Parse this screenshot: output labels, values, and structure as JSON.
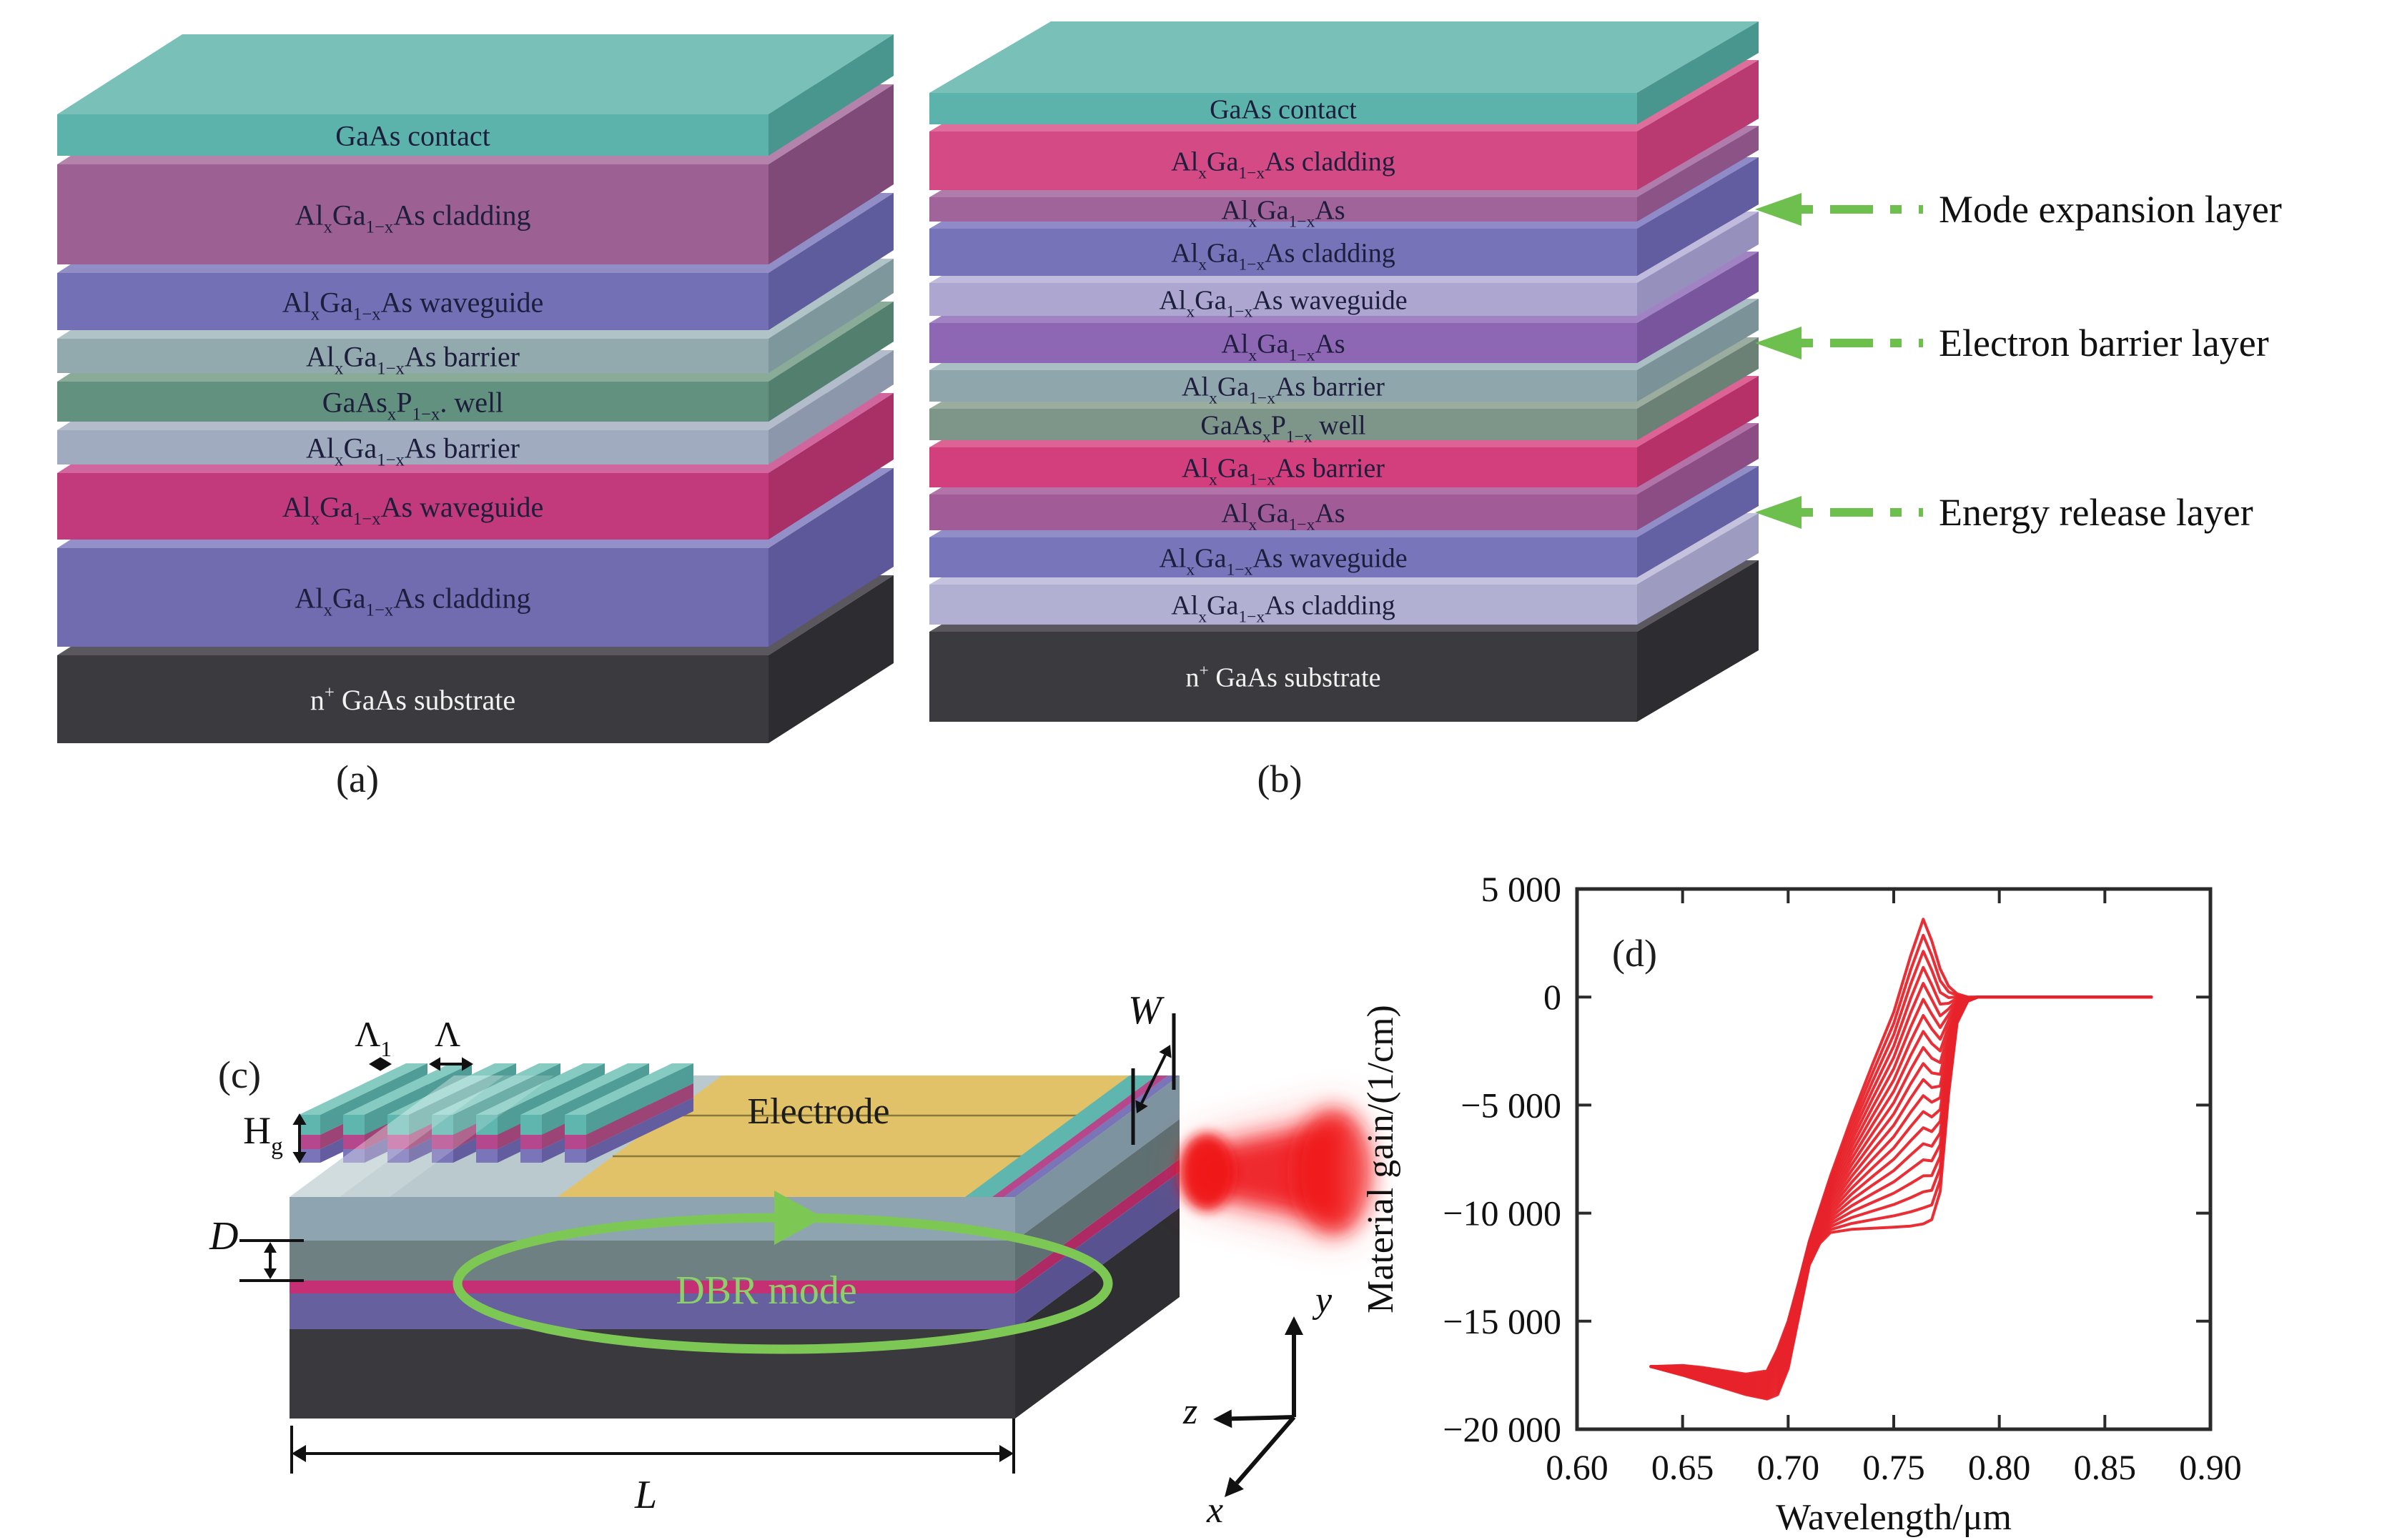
{
  "colors": {
    "annotation_green": "#6dbf4e",
    "dbr_green": "#8bd06a",
    "beam_red": "#ee1b22",
    "curve_red": "#e8232a",
    "electrode_yellow": "#e2c268",
    "text_dark": "#1d1d3c",
    "substrate_text": "#f2f2f2",
    "axis_black": "#2a2a2a"
  },
  "panel_a": {
    "caption": "(a)",
    "layers": [
      {
        "label": [
          {
            "t": "GaAs contact"
          }
        ],
        "h": 58,
        "top": "#79c0b9",
        "front": "#5bb3ac",
        "side": "#49968f",
        "text": "#1d1d3c"
      },
      {
        "label": [
          {
            "t": "Al"
          },
          {
            "t": "x",
            "s": "sub"
          },
          {
            "t": "Ga"
          },
          {
            "t": "1−x",
            "s": "sub"
          },
          {
            "t": "As cladding"
          }
        ],
        "h": 140,
        "top": "#b383ab",
        "front": "#9d6093",
        "side": "#7f4a78",
        "text": "#1d1d3c"
      },
      {
        "label": [
          {
            "t": "Al"
          },
          {
            "t": "x",
            "s": "sub"
          },
          {
            "t": "Ga"
          },
          {
            "t": "1−x",
            "s": "sub"
          },
          {
            "t": "As waveguide"
          }
        ],
        "h": 80,
        "top": "#908dc7",
        "front": "#7370b5",
        "side": "#5f5c9e",
        "text": "#1d1d3c"
      },
      {
        "label": [
          {
            "t": "Al"
          },
          {
            "t": "x",
            "s": "sub"
          },
          {
            "t": "Ga"
          },
          {
            "t": "1−x",
            "s": "sub"
          },
          {
            "t": "As barrier"
          }
        ],
        "h": 48,
        "top": "#b0c3c6",
        "front": "#92a9ae",
        "side": "#7e979c",
        "text": "#1d1d3c"
      },
      {
        "label": [
          {
            "t": "GaAs"
          },
          {
            "t": "x",
            "s": "sub"
          },
          {
            "t": "P"
          },
          {
            "t": "1−x",
            "s": "sub"
          },
          {
            "t": ". well"
          }
        ],
        "h": 56,
        "top": "#8aab97",
        "front": "#62927f",
        "side": "#53806e",
        "text": "#1d1d3c"
      },
      {
        "label": [
          {
            "t": "Al"
          },
          {
            "t": "x",
            "s": "sub"
          },
          {
            "t": "Ga"
          },
          {
            "t": "1−x",
            "s": "sub"
          },
          {
            "t": "As barrier"
          }
        ],
        "h": 48,
        "top": "#b3bccb",
        "front": "#a0abc0",
        "side": "#8c97ac",
        "text": "#1d1d3c"
      },
      {
        "label": [
          {
            "t": "Al"
          },
          {
            "t": "x",
            "s": "sub"
          },
          {
            "t": "Ga"
          },
          {
            "t": "1−x",
            "s": "sub"
          },
          {
            "t": "As waveguide"
          }
        ],
        "h": 93,
        "top": "#d1669e",
        "front": "#c23a7c",
        "side": "#a93067",
        "text": "#1d1d3c"
      },
      {
        "label": [
          {
            "t": "Al"
          },
          {
            "t": "x",
            "s": "sub"
          },
          {
            "t": "Ga"
          },
          {
            "t": "1−x",
            "s": "sub"
          },
          {
            "t": "As cladding"
          }
        ],
        "h": 138,
        "top": "#938fc9",
        "front": "#716bb0",
        "side": "#5d5899",
        "text": "#1d1d3c"
      },
      {
        "label": [
          {
            "t": "n"
          },
          {
            "t": "+",
            "s": "sup"
          },
          {
            "t": " GaAs substrate"
          }
        ],
        "h": 123,
        "top": "#5a585e",
        "front": "#3b3a3f",
        "side": "#2d2c30",
        "text": "#f2f2f2"
      }
    ]
  },
  "panel_b": {
    "caption": "(b)",
    "layers": [
      {
        "label": [
          {
            "t": "GaAs contact"
          }
        ],
        "h": 44,
        "top": "#79c0b9",
        "front": "#5bb3ac",
        "side": "#49968f",
        "text": "#1d1d3c"
      },
      {
        "label": [
          {
            "t": "Al"
          },
          {
            "t": "x",
            "s": "sub"
          },
          {
            "t": "Ga"
          },
          {
            "t": "1−x",
            "s": "sub"
          },
          {
            "t": "As cladding"
          }
        ],
        "h": 82,
        "top": "#de6f9d",
        "front": "#d44a84",
        "side": "#b93a71",
        "text": "#1d1d3c"
      },
      {
        "label": [
          {
            "t": "Al"
          },
          {
            "t": "x",
            "s": "sub"
          },
          {
            "t": "Ga"
          },
          {
            "t": "1−x",
            "s": "sub"
          },
          {
            "t": "As"
          }
        ],
        "h": 34,
        "top": "#b07cab",
        "front": "#a0639a",
        "side": "#8b5386",
        "text": "#1d1d3c"
      },
      {
        "label": [
          {
            "t": "Al"
          },
          {
            "t": "x",
            "s": "sub"
          },
          {
            "t": "Ga"
          },
          {
            "t": "1−x",
            "s": "sub"
          },
          {
            "t": "As cladding"
          }
        ],
        "h": 66,
        "top": "#8e8bc8",
        "front": "#7673b9",
        "side": "#615da0",
        "text": "#1d1d3c"
      },
      {
        "label": [
          {
            "t": "Al"
          },
          {
            "t": "x",
            "s": "sub"
          },
          {
            "t": "Ga"
          },
          {
            "t": "1−x",
            "s": "sub"
          },
          {
            "t": "As waveguide"
          }
        ],
        "h": 46,
        "top": "#c0bbdd",
        "front": "#aca6d1",
        "side": "#9690bd",
        "text": "#1d1d3c"
      },
      {
        "label": [
          {
            "t": "Al"
          },
          {
            "t": "x",
            "s": "sub"
          },
          {
            "t": "Ga"
          },
          {
            "t": "1−x",
            "s": "sub"
          },
          {
            "t": "As"
          }
        ],
        "h": 56,
        "top": "#a183c4",
        "front": "#8e67b4",
        "side": "#79559d",
        "text": "#1d1d3c"
      },
      {
        "label": [
          {
            "t": "Al"
          },
          {
            "t": "x",
            "s": "sub"
          },
          {
            "t": "Ga"
          },
          {
            "t": "1−x",
            "s": "sub"
          },
          {
            "t": "As barrier"
          }
        ],
        "h": 44,
        "top": "#aabfc3",
        "front": "#8fa7ac",
        "side": "#7b9398",
        "text": "#1d1d3c"
      },
      {
        "label": [
          {
            "t": "GaAs"
          },
          {
            "t": "x",
            "s": "sub"
          },
          {
            "t": "P"
          },
          {
            "t": "1−x",
            "s": "sub"
          },
          {
            "t": " well"
          }
        ],
        "h": 44,
        "top": "#9aad9f",
        "front": "#7e958a",
        "side": "#6b8175",
        "text": "#1d1d3c"
      },
      {
        "label": [
          {
            "t": "Al"
          },
          {
            "t": "x",
            "s": "sub"
          },
          {
            "t": "Ga"
          },
          {
            "t": "1−x",
            "s": "sub"
          },
          {
            "t": "As barrier"
          }
        ],
        "h": 56,
        "top": "#dc6394",
        "front": "#d23f7c",
        "side": "#b63168",
        "text": "#1d1d3c"
      },
      {
        "label": [
          {
            "t": "Al"
          },
          {
            "t": "x",
            "s": "sub"
          },
          {
            "t": "Ga"
          },
          {
            "t": "1−x",
            "s": "sub"
          },
          {
            "t": "As"
          }
        ],
        "h": 50,
        "top": "#b173a8",
        "front": "#a15c98",
        "side": "#8b4d83",
        "text": "#1d1d3c"
      },
      {
        "label": [
          {
            "t": "Al"
          },
          {
            "t": "x",
            "s": "sub"
          },
          {
            "t": "Ga"
          },
          {
            "t": "1−x",
            "s": "sub"
          },
          {
            "t": "As waveguide"
          }
        ],
        "h": 56,
        "top": "#908dc7",
        "front": "#7875bb",
        "side": "#6360a3",
        "text": "#1d1d3c"
      },
      {
        "label": [
          {
            "t": "Al"
          },
          {
            "t": "x",
            "s": "sub"
          },
          {
            "t": "Ga"
          },
          {
            "t": "1−x",
            "s": "sub"
          },
          {
            "t": "As cladding"
          }
        ],
        "h": 56,
        "top": "#c5c2de",
        "front": "#b2b0d2",
        "side": "#9d9bbf",
        "text": "#1d1d3c"
      },
      {
        "label": [
          {
            "t": "n"
          },
          {
            "t": "+",
            "s": "sup"
          },
          {
            "t": " GaAs substrate"
          }
        ],
        "h": 126,
        "top": "#5a585e",
        "front": "#3b3a3f",
        "side": "#2d2c30",
        "text": "#f2f2f2"
      }
    ]
  },
  "annotations": [
    {
      "label": "Mode expansion layer",
      "layer_index": 2
    },
    {
      "label": "Electron barrier layer",
      "layer_index": 5
    },
    {
      "label": "Energy release layer",
      "layer_index": 9
    }
  ],
  "panel_c": {
    "caption": "(c)",
    "electrode_label": "Electrode",
    "dbr_mode_label": "DBR mode",
    "dims": {
      "lambda1": [
        {
          "t": "Λ"
        },
        {
          "t": "1",
          "s": "sub"
        }
      ],
      "lambda": "Λ",
      "height_g": [
        {
          "t": "H"
        },
        {
          "t": "g",
          "s": "sub"
        }
      ],
      "depth": "D",
      "length": "L",
      "width": "W"
    },
    "axes": {
      "x": "x",
      "y": "y",
      "z": "z"
    },
    "grating_bars": 7
  },
  "chart_data": {
    "type": "line",
    "title": "(d)",
    "xlabel": "Wavelength/μm",
    "ylabel": "Material gain/(1/cm)",
    "xlim": [
      0.6,
      0.9
    ],
    "ylim": [
      -20000,
      5000
    ],
    "grid": false,
    "legend": null,
    "xticks": {
      "values": [
        0.6,
        0.65,
        0.7,
        0.75,
        0.8,
        0.85,
        0.9
      ],
      "labels": [
        "0.60",
        "0.65",
        "0.70",
        "0.75",
        "0.80",
        "0.85",
        "0.90"
      ]
    },
    "yticks": {
      "values": [
        5000,
        0,
        -5000,
        -10000,
        -15000,
        -20000
      ],
      "labels": [
        "5 000",
        "0",
        "−5 000",
        "−10 000",
        "−15 000",
        "−20 000"
      ]
    },
    "series_color": "#e8232a",
    "n_curves": 20,
    "x": [
      0.635,
      0.65,
      0.66,
      0.67,
      0.68,
      0.69,
      0.695,
      0.7,
      0.705,
      0.71,
      0.715,
      0.72,
      0.73,
      0.74,
      0.75,
      0.758,
      0.764,
      0.768,
      0.772,
      0.776,
      0.78,
      0.785,
      0.79,
      0.81,
      0.872
    ],
    "y_envelope_low": [
      -17100,
      -17500,
      -17800,
      -18100,
      -18400,
      -18600,
      -18400,
      -17200,
      -14800,
      -12400,
      -11400,
      -10900,
      -10750,
      -10700,
      -10650,
      -10600,
      -10500,
      -10300,
      -9000,
      -4500,
      -1200,
      -200,
      0,
      0,
      0
    ],
    "y_envelope_high": [
      -17100,
      -17050,
      -17150,
      -17300,
      -17450,
      -17300,
      -16300,
      -15000,
      -13200,
      -11300,
      -9800,
      -8300,
      -5600,
      -3100,
      -700,
      1900,
      3600,
      2600,
      1300,
      500,
      150,
      0,
      0,
      0,
      0
    ]
  }
}
